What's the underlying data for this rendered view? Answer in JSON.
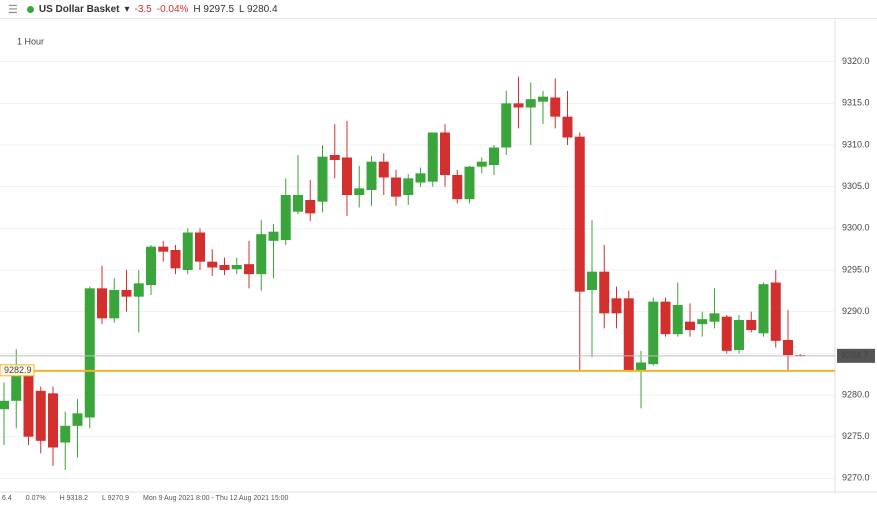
{
  "header": {
    "name": "US Dollar Basket",
    "change": "-3.5",
    "change_pct": "-0.04%",
    "high": "H 9297.5",
    "low": "L 9280.4"
  },
  "footer": {
    "change": "6.4",
    "change_pct": "0.07%",
    "high": "H 9318.2",
    "low": "L 9270.9",
    "range": "Mon 9 Aug 2021 8:00 - Thu 12 Aug 2021 15:00"
  },
  "chart_data": {
    "type": "candlestick",
    "timeframe": "1 Hour",
    "open": [
      9278.3,
      9279.3,
      9282.6,
      9280.5,
      9280.2,
      9274.3,
      9276.3,
      9277.3,
      9292.8,
      9289.2,
      9292.6,
      9291.8,
      9293.2,
      9297.8,
      9297.4,
      9295,
      9299.5,
      9296,
      9295.6,
      9295.1,
      9295.7,
      9294.5,
      9298.5,
      9298.6,
      9302,
      9303.4,
      9303.2,
      9308.8,
      9308.5,
      9304,
      9304.6,
      9308,
      9306.1,
      9304,
      9305.5,
      9305.6,
      9311.5,
      9306.4,
      9303.5,
      9307.4,
      9307.6,
      9309.7,
      9315,
      9314.5,
      9315.2,
      9315.7,
      9313.4,
      9311,
      9292.6,
      9294.8,
      9291.6,
      9291.6,
      9282.9,
      9283.7,
      9291.2,
      9287.3,
      9288.8,
      9288.5,
      9288.8,
      9289.4,
      9285.4,
      9289,
      9287.4,
      9293.5,
      9286.6,
      9284.8
    ],
    "high": [
      9281.5,
      9285.5,
      9283,
      9281,
      9281,
      9278,
      9279.5,
      9293,
      9295.5,
      9294,
      9295,
      9295,
      9298,
      9298.5,
      9298,
      9300,
      9300,
      9297.5,
      9296.5,
      9296.5,
      9298.5,
      9301,
      9300.5,
      9306,
      9308.8,
      9305.8,
      9310,
      9312.5,
      9312.9,
      9307.5,
      9308.7,
      9309,
      9307,
      9306.5,
      9307.3,
      9311.5,
      9312.5,
      9307,
      9307.5,
      9308.5,
      9310,
      9316.5,
      9318.2,
      9317.5,
      9316.5,
      9318,
      9316.5,
      9311.5,
      9301,
      9298,
      9293,
      9292.5,
      9285.3,
      9291.7,
      9291.7,
      9293.5,
      9291,
      9290,
      9292.8,
      9289.6,
      9289.6,
      9290,
      9293.5,
      9295,
      9290.2,
      9284.9
    ],
    "low": [
      9274,
      9276,
      9274,
      9273,
      9271.5,
      9271,
      9272.5,
      9276,
      9288.5,
      9288.7,
      9290,
      9287.5,
      9292,
      9296,
      9294.5,
      9294.5,
      9295,
      9294.3,
      9294.4,
      9294.5,
      9292.8,
      9292.5,
      9294,
      9298,
      9301.7,
      9300.9,
      9301.9,
      9306,
      9301.5,
      9302.5,
      9302.7,
      9304,
      9302.7,
      9302.8,
      9305,
      9305,
      9305,
      9303,
      9303,
      9306.6,
      9306.4,
      9308.8,
      9312,
      9310,
      9312.5,
      9312,
      9310,
      9283,
      9284.5,
      9288,
      9288,
      9282.8,
      9278.4,
      9283.5,
      9287,
      9287,
      9287,
      9287,
      9288,
      9285,
      9285,
      9287.5,
      9287,
      9285.7,
      9282.8,
      9284.6
    ],
    "close": [
      9279.3,
      9282.6,
      9275,
      9274.5,
      9273.7,
      9276.3,
      9277.8,
      9292.8,
      9289.2,
      9292.6,
      9291.8,
      9293.4,
      9297.8,
      9297.2,
      9295.2,
      9299.5,
      9296,
      9295.3,
      9295,
      9295.6,
      9294.5,
      9299.3,
      9299.6,
      9304,
      9304,
      9301.8,
      9308.6,
      9308.2,
      9304,
      9304.8,
      9308,
      9306.1,
      9303.8,
      9306,
      9306.6,
      9311.5,
      9306.4,
      9303.5,
      9307.4,
      9308,
      9309.7,
      9315,
      9314.5,
      9315.5,
      9315.8,
      9313.4,
      9310.9,
      9292.4,
      9294.8,
      9289.8,
      9289.8,
      9283,
      9283.9,
      9291.2,
      9287.3,
      9290.8,
      9287.8,
      9289.1,
      9289.8,
      9285.3,
      9289,
      9287.8,
      9293.3,
      9286.5,
      9284.8,
      9284.7
    ],
    "up_color": "#3aa53a",
    "down_color": "#d32f2f",
    "ylim": [
      9268.6,
      9325
    ],
    "yticks": [
      {
        "value": 9320,
        "label": "9320.0"
      },
      {
        "value": 9315,
        "label": "9315.0"
      },
      {
        "value": 9310,
        "label": "9310.0"
      },
      {
        "value": 9305,
        "label": "9305.0"
      },
      {
        "value": 9300,
        "label": "9300.0"
      },
      {
        "value": 9295,
        "label": "9295.0"
      },
      {
        "value": 9290,
        "label": "9290.0"
      },
      {
        "value": 9285,
        "label": "9285.0"
      },
      {
        "value": 9280,
        "label": "9280.0"
      },
      {
        "value": 9275,
        "label": "9275.0"
      },
      {
        "value": 9270,
        "label": "9270.0"
      }
    ],
    "grid": true,
    "last_price": 9284.7,
    "level_line": {
      "value": 9282.9,
      "color": "#f0b429"
    }
  }
}
